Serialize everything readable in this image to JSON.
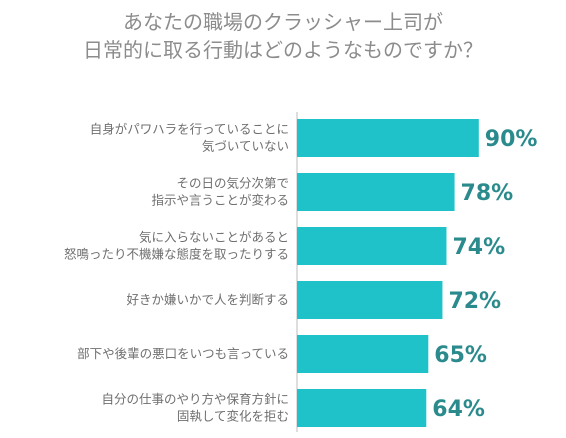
{
  "colors": {
    "bar": "#1fc2c8",
    "value_text": "#2a8a8c",
    "category_text": "#6f6f6f",
    "title_text": "#8c8c8c",
    "axis": "#bdbdbd"
  },
  "chart_data": {
    "type": "bar",
    "orientation": "horizontal",
    "title_lines": [
      "あなたの職場のクラッシャー上司が",
      "日常的に取る行動はどのようなものですか？"
    ],
    "categories": [
      [
        "自身がパワハラを行っていることに",
        "気づいていない"
      ],
      [
        "その日の気分次第で",
        "指示や言うことが変わる"
      ],
      [
        "気に入らないことがあると",
        "怒鳴ったり不機嫌な態度を取ったりする"
      ],
      [
        "好きか嫌いかで人を判断する"
      ],
      [
        "部下や後輩の悪口をいつも言っている"
      ],
      [
        "自分の仕事のやり方や保育方針に",
        "固執して変化を拒む"
      ]
    ],
    "values": [
      90,
      78,
      74,
      72,
      65,
      64
    ],
    "value_labels": [
      "90%",
      "78%",
      "74%",
      "72%",
      "65%",
      "64%"
    ],
    "unit": "%",
    "xlim": [
      0,
      100
    ],
    "grid": false,
    "legend": "none"
  }
}
